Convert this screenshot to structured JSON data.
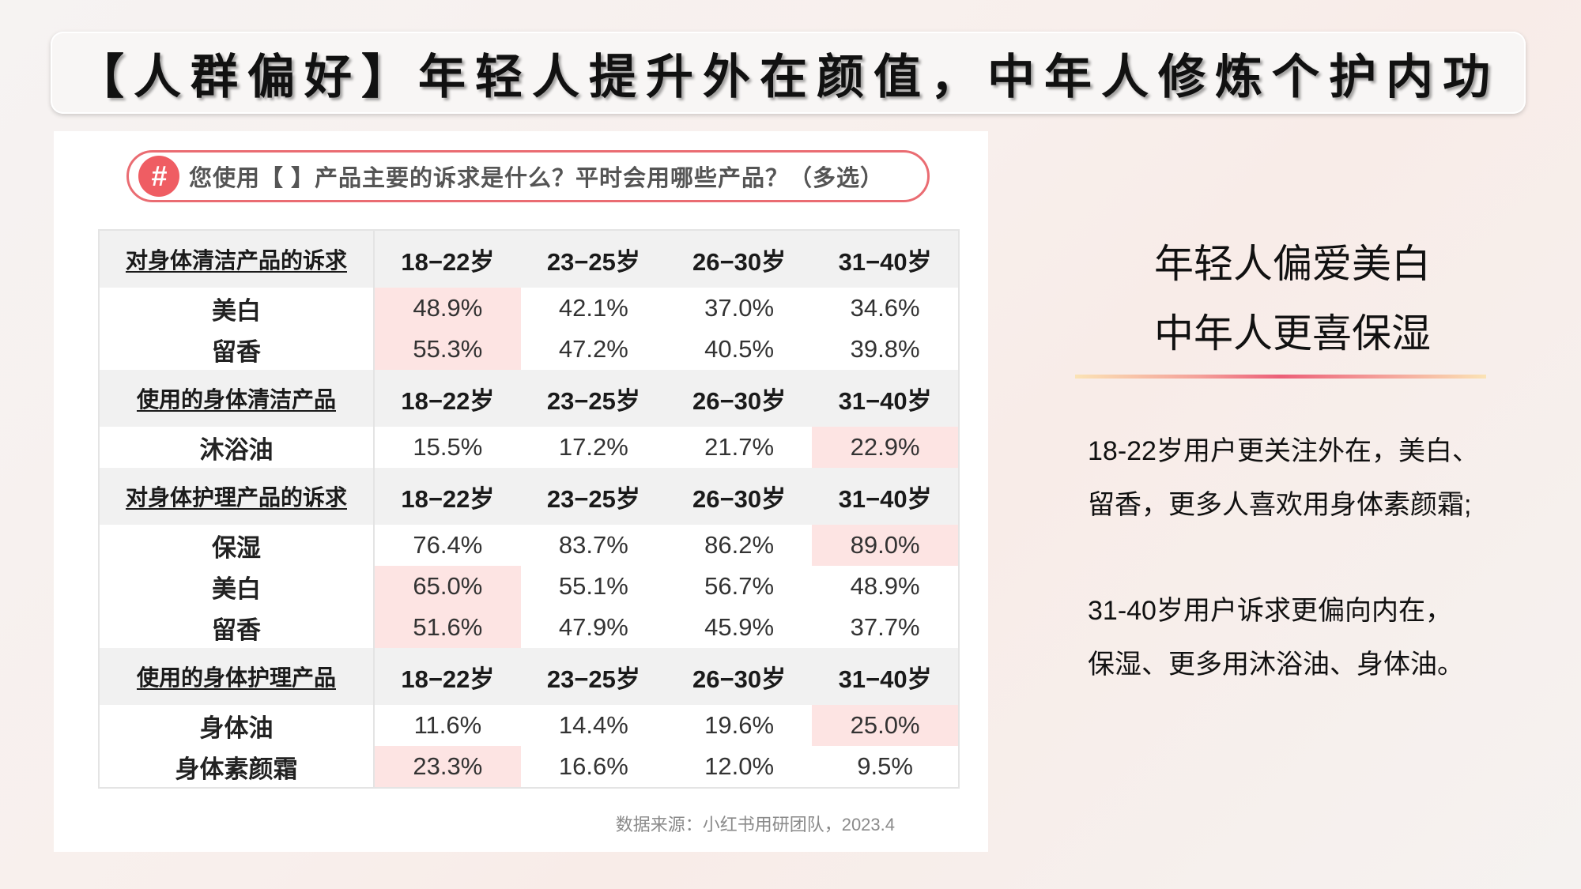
{
  "title": "【人群偏好】年轻人提升外在颜值，中年人修炼个护内功",
  "question": {
    "icon": "hash-icon",
    "text": "您使用【 】产品主要的诉求是什么？平时会用哪些产品？（多选）"
  },
  "table": {
    "age_groups": [
      "18−22岁",
      "23−25岁",
      "26−30岁",
      "31−40岁"
    ],
    "sections": [
      {
        "header": "对身体清洁产品的诉求",
        "rows": [
          {
            "label": "美白",
            "values": [
              "48.9%",
              "42.1%",
              "37.0%",
              "34.6%"
            ],
            "highlight": 0
          },
          {
            "label": "留香",
            "values": [
              "55.3%",
              "47.2%",
              "40.5%",
              "39.8%"
            ],
            "highlight": 0
          }
        ]
      },
      {
        "header": "使用的身体清洁产品",
        "rows": [
          {
            "label": "沐浴油",
            "values": [
              "15.5%",
              "17.2%",
              "21.7%",
              "22.9%"
            ],
            "highlight": 3
          }
        ]
      },
      {
        "header": "对身体护理产品的诉求",
        "rows": [
          {
            "label": "保湿",
            "values": [
              "76.4%",
              "83.7%",
              "86.2%",
              "89.0%"
            ],
            "highlight": 3
          },
          {
            "label": "美白",
            "values": [
              "65.0%",
              "55.1%",
              "56.7%",
              "48.9%"
            ],
            "highlight": 0
          },
          {
            "label": "留香",
            "values": [
              "51.6%",
              "47.9%",
              "45.9%",
              "37.7%"
            ],
            "highlight": 0
          }
        ]
      },
      {
        "header": "使用的身体护理产品",
        "rows": [
          {
            "label": "身体油",
            "values": [
              "11.6%",
              "14.4%",
              "19.6%",
              "25.0%"
            ],
            "highlight": 3
          },
          {
            "label": "身体素颜霜",
            "values": [
              "23.3%",
              "16.6%",
              "12.0%",
              "9.5%"
            ],
            "highlight": 0
          }
        ]
      }
    ]
  },
  "source": "数据来源：小红书用研团队，2023.4",
  "summary": {
    "headline_lines": [
      "年轻人偏爱美白",
      "中年人更喜保湿"
    ],
    "paragraphs": [
      [
        "18-22岁用户更关注外在，美白、",
        "留香，更多人喜欢用身体素颜霜;"
      ],
      [
        "31-40岁用户诉求更偏向内在，",
        "保湿、更多用沐浴油、身体油。"
      ]
    ]
  },
  "colors": {
    "accent": "#ef5d63",
    "highlight_cell": "#fde4e3",
    "header_row": "#f1f1f1"
  }
}
